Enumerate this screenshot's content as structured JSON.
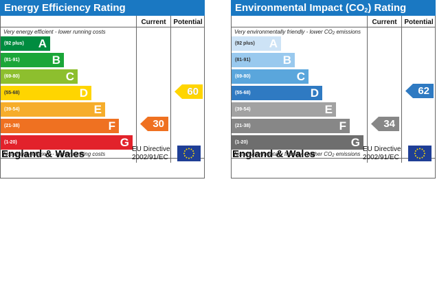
{
  "chart_data": [
    {
      "type": "bar",
      "title": "Energy Efficiency Rating",
      "top_note": "Very energy efficient - lower running costs",
      "bottom_note": "Not energy efficient - higher running costs",
      "columns": {
        "current": "Current",
        "potential": "Potential"
      },
      "bands": [
        {
          "letter": "A",
          "range": "(92 plus)",
          "color": "#008c3f"
        },
        {
          "letter": "B",
          "range": "(81-91)",
          "color": "#1ba639"
        },
        {
          "letter": "C",
          "range": "(69-80)",
          "color": "#8dbf2e"
        },
        {
          "letter": "D",
          "range": "(55-68)",
          "color": "#ffd500"
        },
        {
          "letter": "E",
          "range": "(39-54)",
          "color": "#f6ad2b"
        },
        {
          "letter": "F",
          "range": "(21-38)",
          "color": "#ef7121"
        },
        {
          "letter": "G",
          "range": "(1-20)",
          "color": "#e2222b"
        }
      ],
      "current": {
        "value": "30",
        "band": "F",
        "color": "#ef7121"
      },
      "potential": {
        "value": "60",
        "band": "D",
        "color": "#ffd500"
      },
      "region": "England & Wales",
      "directive_line1": "EU Directive",
      "directive_line2": "2002/91/EC"
    },
    {
      "type": "bar",
      "title_prefix": "Environmental Impact (CO",
      "title_sub": "2",
      "title_suffix": ") Rating",
      "top_note_prefix": "Very environmentally friendly - lower CO",
      "top_note_sub": "2",
      "top_note_suffix": " emissions",
      "bottom_note_prefix": "Not environmentally friendly - higher CO",
      "bottom_note_sub": "2",
      "bottom_note_suffix": " emissions",
      "columns": {
        "current": "Current",
        "potential": "Potential"
      },
      "bands": [
        {
          "letter": "A",
          "range": "(92 plus)",
          "color": "#cde3f6"
        },
        {
          "letter": "B",
          "range": "(81-91)",
          "color": "#99c9ee"
        },
        {
          "letter": "C",
          "range": "(69-80)",
          "color": "#5aa6dc"
        },
        {
          "letter": "D",
          "range": "(55-68)",
          "color": "#2f7ac2"
        },
        {
          "letter": "E",
          "range": "(39-54)",
          "color": "#a2a2a2"
        },
        {
          "letter": "F",
          "range": "(21-38)",
          "color": "#878787"
        },
        {
          "letter": "G",
          "range": "(1-20)",
          "color": "#6e6e6e"
        }
      ],
      "current": {
        "value": "34",
        "band": "F",
        "color": "#878787"
      },
      "potential": {
        "value": "62",
        "band": "D",
        "color": "#2f7ac2"
      },
      "region": "England & Wales",
      "directive_line1": "EU Directive",
      "directive_line2": "2002/91/EC"
    }
  ]
}
